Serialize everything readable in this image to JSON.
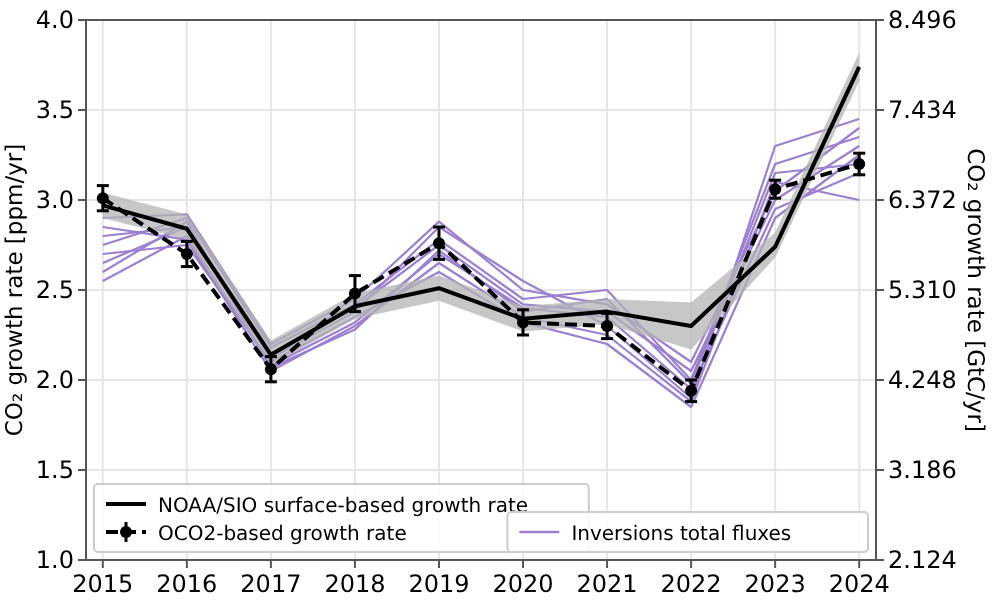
{
  "chart_data": {
    "type": "line",
    "ylabel": "CO₂ growth rate [ppm/yr]",
    "y2label": "CO₂ growth rate [GtC/yr]",
    "x": [
      2015,
      2016,
      2017,
      2018,
      2019,
      2020,
      2021,
      2022,
      2023,
      2024
    ],
    "xlim": [
      2014.8,
      2024.2
    ],
    "xticks": [
      2015,
      2016,
      2017,
      2018,
      2019,
      2020,
      2021,
      2022,
      2023,
      2024
    ],
    "ylim": [
      1,
      4
    ],
    "yticks": [
      {
        "value": 1,
        "label": "1.0"
      },
      1.5,
      {
        "value": 2,
        "label": "2.0"
      },
      2.5,
      {
        "value": 3,
        "label": "3.0"
      },
      3.5,
      {
        "value": 4,
        "label": "4.0"
      }
    ],
    "y2lim": [
      2.124,
      8.496
    ],
    "y2ticks": [
      2.124,
      3.186,
      4.248,
      {
        "value": 5.31,
        "label": "5.310"
      },
      6.372,
      7.434,
      8.496
    ],
    "grid": true,
    "legend": "bottom",
    "series": [
      {
        "name": "Inversions total fluxes",
        "color": "#9b7fd0",
        "values": [
          2.55,
          2.8,
          2.08,
          2.32,
          2.7,
          2.4,
          2.35,
          1.95,
          2.95,
          3.15
        ]
      },
      {
        "color": "#9b7fd0",
        "values": [
          2.65,
          2.85,
          2.12,
          2.38,
          2.85,
          2.55,
          2.3,
          1.9,
          3.3,
          3.45
        ]
      },
      {
        "color": "#9b7fd0",
        "values": [
          2.75,
          2.9,
          2.18,
          2.42,
          2.78,
          2.45,
          2.5,
          2.0,
          3.2,
          3.35
        ]
      },
      {
        "color": "#9b7fd0",
        "values": [
          2.85,
          2.78,
          2.05,
          2.3,
          2.65,
          2.35,
          2.25,
          1.88,
          3.1,
          3.0
        ]
      },
      {
        "color": "#9b7fd0",
        "values": [
          2.9,
          2.92,
          2.2,
          2.45,
          2.88,
          2.5,
          2.42,
          2.1,
          3.05,
          3.4
        ]
      },
      {
        "color": "#9b7fd0",
        "values": [
          2.7,
          2.75,
          2.1,
          2.35,
          2.6,
          2.32,
          2.2,
          1.85,
          2.9,
          3.25
        ]
      },
      {
        "color": "#9b7fd0",
        "values": [
          2.8,
          2.85,
          2.15,
          2.4,
          2.75,
          2.42,
          2.38,
          2.05,
          3.0,
          3.3
        ]
      },
      {
        "color": "#9b7fd0",
        "values": [
          2.6,
          2.88,
          2.07,
          2.28,
          2.72,
          2.38,
          2.45,
          1.98,
          3.15,
          3.2
        ]
      },
      {
        "name": "NOAA/SIO surface-based growth rate",
        "color": "#000000",
        "values": [
          2.97,
          2.84,
          2.14,
          2.41,
          2.51,
          2.34,
          2.38,
          2.3,
          2.74,
          3.74
        ],
        "lower": [
          2.9,
          2.78,
          2.08,
          2.34,
          2.44,
          2.27,
          2.31,
          2.17,
          2.68,
          3.66
        ],
        "upper": [
          3.04,
          2.92,
          2.22,
          2.48,
          2.58,
          2.41,
          2.45,
          2.43,
          2.82,
          3.82
        ]
      },
      {
        "name": "OCO2-based growth rate",
        "color": "#000000",
        "line_style": "dashed",
        "marker": "circle",
        "values": [
          3.01,
          2.7,
          2.06,
          2.48,
          2.76,
          2.32,
          2.3,
          1.94,
          3.06,
          3.2
        ],
        "errors": [
          0.07,
          0.07,
          0.07,
          0.1,
          0.09,
          0.07,
          0.07,
          0.06,
          0.05,
          0.06
        ]
      }
    ]
  }
}
